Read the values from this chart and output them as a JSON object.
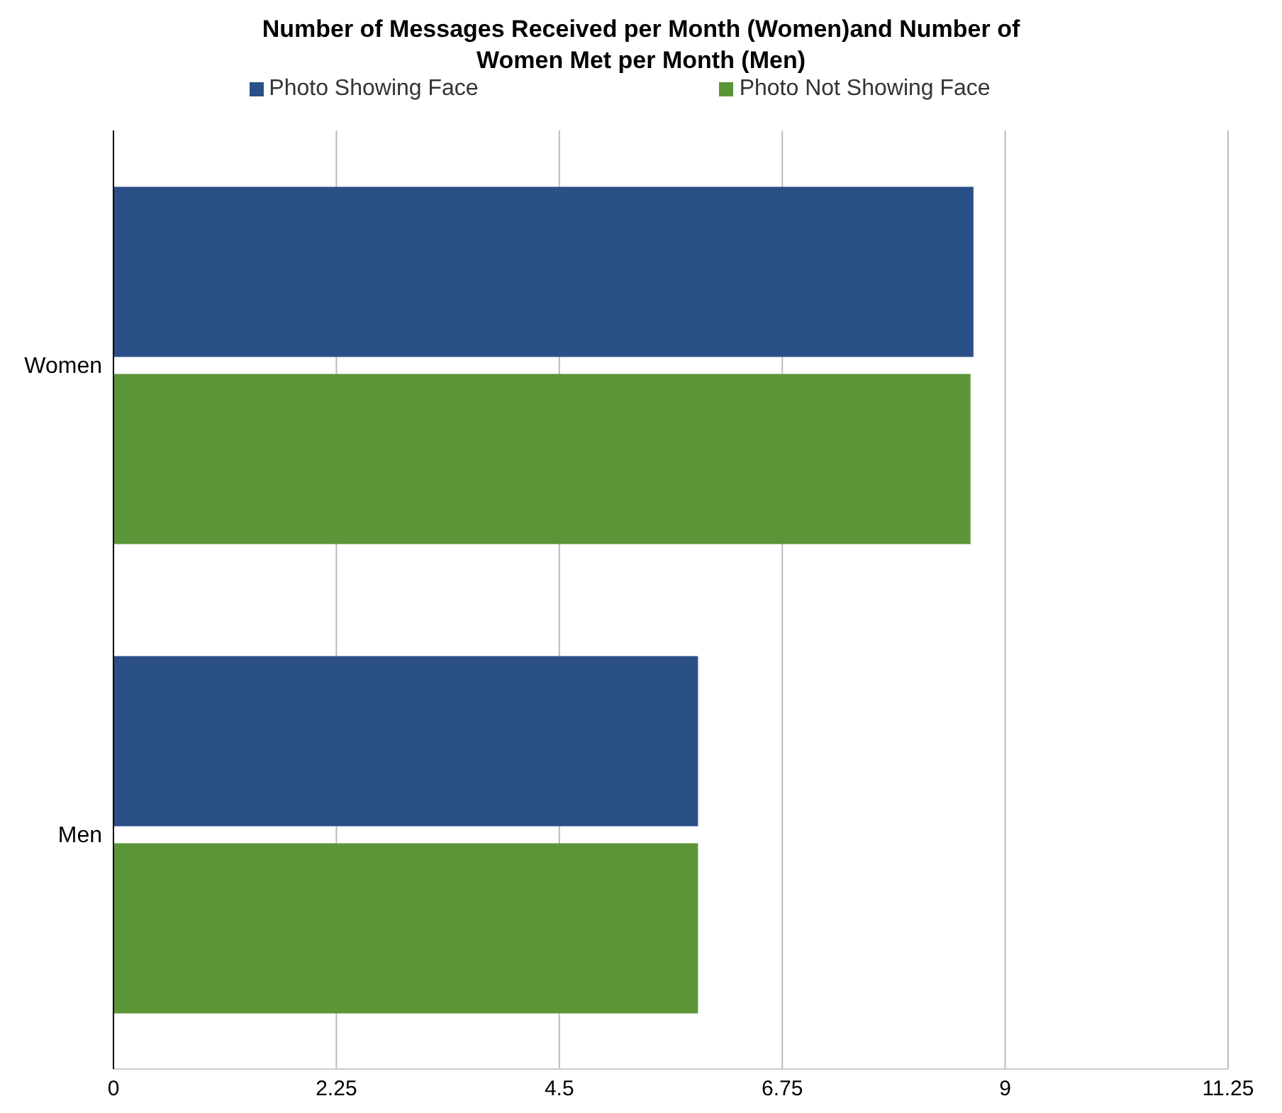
{
  "chart_data": {
    "type": "bar",
    "orientation": "horizontal",
    "title": "Number of Messages Received per Month (Women)and Number of Women Met per Month (Men)",
    "categories": [
      "Women",
      "Men"
    ],
    "series": [
      {
        "name": "Photo Showing Face",
        "color": "#2b5088",
        "values": [
          8.68,
          5.9
        ]
      },
      {
        "name": "Photo Not Showing Face",
        "color": "#5c9538",
        "values": [
          8.65,
          5.9
        ]
      }
    ],
    "xlim": [
      0,
      11.25
    ],
    "xticks": [
      0,
      2.25,
      4.5,
      6.75,
      9,
      11.25
    ],
    "grid": "x",
    "legend": "top"
  }
}
